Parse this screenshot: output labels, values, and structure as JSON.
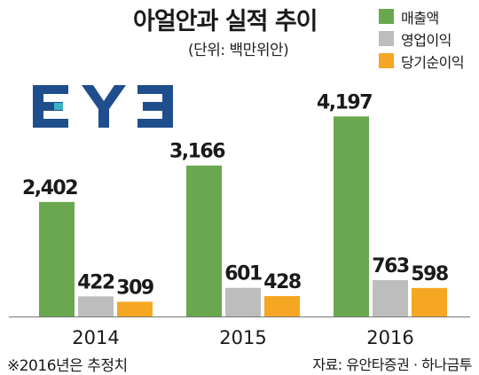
{
  "chart_data": {
    "type": "bar",
    "title": "아얼안과 실적 추이",
    "subtitle": "(단위: 백만위안)",
    "categories": [
      "2014",
      "2015",
      "2016"
    ],
    "series": [
      {
        "name": "매출액",
        "color": "#6aa84f",
        "values": [
          2402,
          3166,
          4197
        ],
        "labels": [
          "2,402",
          "3,166",
          "4,197"
        ]
      },
      {
        "name": "영업이익",
        "color": "#bdbdbd",
        "values": [
          422,
          601,
          763
        ],
        "labels": [
          "422",
          "601",
          "763"
        ]
      },
      {
        "name": "당기순이익",
        "color": "#f5a623",
        "values": [
          309,
          428,
          598
        ],
        "labels": [
          "309",
          "428",
          "598"
        ]
      }
    ],
    "ylim": [
      0,
      4500
    ],
    "grid": false,
    "legend_position": "top-right"
  },
  "logo": {
    "text": "EYE",
    "color": "#1f4e8c",
    "accent": "#3bb3c3"
  },
  "footnote": "※2016년은 추정치",
  "source": "자료: 유안타증권 · 하나금투"
}
